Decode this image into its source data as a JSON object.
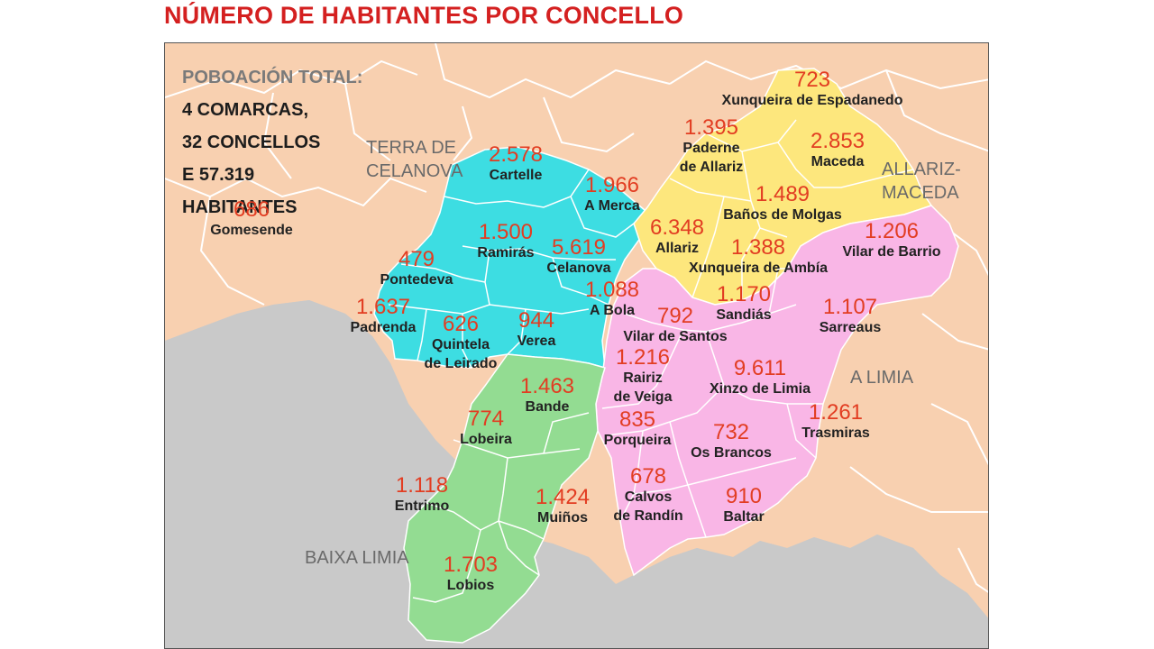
{
  "title": "NÚMERO DE HABITANTES POR CONCELLO",
  "summary": {
    "line1": "POBOACIÓN TOTAL:",
    "line2": "4 COMARCAS,",
    "line3": "32 CONCELLOS",
    "line4": "E 57.319",
    "line5": "HABITANTES"
  },
  "colors": {
    "terra_de_celanova": "#3ddde2",
    "allariz_maceda": "#fde77d",
    "a_limia": "#f9b6e6",
    "baixa_limia": "#93dc92",
    "outside_galicia": "#c9c9c9",
    "neighbouring": "#f8d0b0",
    "population": "#e23d22",
    "title": "#d42020"
  },
  "comarcas": {
    "terra_de_celanova": "TERRA DE\nCELANOVA",
    "allariz_maceda": "ALLARIZ-\nMACEDA",
    "a_limia": "A LIMIA",
    "baixa_limia": "BAIXA LIMIA"
  },
  "municipalities": [
    {
      "id": "xunqueira-espadanedo",
      "population": "723",
      "name": "Xunqueira de Espadanedo"
    },
    {
      "id": "paderne-allariz",
      "population": "1.395",
      "name": "Paderne\nde Allariz"
    },
    {
      "id": "maceda",
      "population": "2.853",
      "name": "Maceda"
    },
    {
      "id": "cartelle",
      "population": "2.578",
      "name": "Cartelle"
    },
    {
      "id": "a-merca",
      "population": "1.966",
      "name": "A Merca"
    },
    {
      "id": "banos-molgas",
      "population": "1.489",
      "name": "Baños de Molgas"
    },
    {
      "id": "gomesende",
      "population": "686",
      "name": "Gomesende"
    },
    {
      "id": "ramiras",
      "population": "1.500",
      "name": "Ramirás"
    },
    {
      "id": "allariz",
      "population": "6.348",
      "name": "Allariz"
    },
    {
      "id": "vilar-barrio",
      "population": "1.206",
      "name": "Vilar de Barrio"
    },
    {
      "id": "celanova",
      "population": "5.619",
      "name": "Celanova"
    },
    {
      "id": "xunqueira-ambia",
      "population": "1.388",
      "name": "Xunqueira de Ambía"
    },
    {
      "id": "pontedeva",
      "population": "479",
      "name": "Pontedeva"
    },
    {
      "id": "a-bola",
      "population": "1.088",
      "name": "A Bola"
    },
    {
      "id": "sandias",
      "population": "1.170",
      "name": "Sandiás"
    },
    {
      "id": "padrenda",
      "population": "1.637",
      "name": "Padrenda"
    },
    {
      "id": "sarreaus",
      "population": "1.107",
      "name": "Sarreaus"
    },
    {
      "id": "quintela-leirado",
      "population": "626",
      "name": "Quintela\nde Leirado"
    },
    {
      "id": "verea",
      "population": "944",
      "name": "Verea"
    },
    {
      "id": "vilar-santos",
      "population": "792",
      "name": "Vilar de Santos"
    },
    {
      "id": "rairiz-veiga",
      "population": "1.216",
      "name": "Rairiz\nde Veiga"
    },
    {
      "id": "xinzo-limia",
      "population": "9.611",
      "name": "Xinzo de Limia"
    },
    {
      "id": "bande",
      "population": "1.463",
      "name": "Bande"
    },
    {
      "id": "lobeira",
      "population": "774",
      "name": "Lobeira"
    },
    {
      "id": "porqueira",
      "population": "835",
      "name": "Porqueira"
    },
    {
      "id": "os-brancos",
      "population": "732",
      "name": "Os Brancos"
    },
    {
      "id": "trasmiras",
      "population": "1.261",
      "name": "Trasmiras"
    },
    {
      "id": "entrimo",
      "population": "1.118",
      "name": "Entrimo"
    },
    {
      "id": "calvos-randin",
      "population": "678",
      "name": "Calvos\nde Randín"
    },
    {
      "id": "muinos",
      "population": "1.424",
      "name": "Muiños"
    },
    {
      "id": "baltar",
      "population": "910",
      "name": "Baltar"
    },
    {
      "id": "lobios",
      "population": "1.703",
      "name": "Lobios"
    }
  ]
}
